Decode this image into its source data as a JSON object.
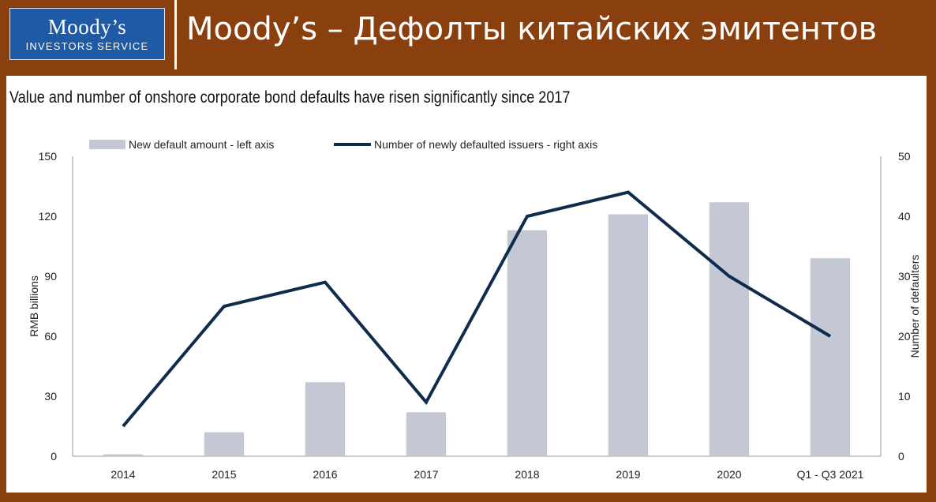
{
  "header": {
    "logo_name": "Moody’s",
    "logo_sub": "INVESTORS SERVICE",
    "title": "Moody’s – Дефолты китайских эмитентов"
  },
  "colors": {
    "background": "#8a3f0f",
    "logo_blue": "#1f5aa6",
    "bar": "#c3c8d4",
    "line": "#0f2c4d"
  },
  "chart_data": {
    "type": "bar",
    "title": "Value and number of onshore corporate bond defaults have risen significantly since 2017",
    "categories": [
      "2014",
      "2015",
      "2016",
      "2017",
      "2018",
      "2019",
      "2020",
      "Q1 - Q3 2021"
    ],
    "series": [
      {
        "name": "New default amount - left axis",
        "type": "bar",
        "axis": "left",
        "values": [
          1,
          12,
          37,
          22,
          113,
          121,
          127,
          99
        ]
      },
      {
        "name": "Number of newly defaulted issuers - right axis",
        "type": "line",
        "axis": "right",
        "values": [
          5,
          25,
          29,
          9,
          40,
          44,
          30,
          20
        ]
      }
    ],
    "ylabel": "RMB billions",
    "y2label": "Number of defaulters",
    "ylim": [
      0,
      150
    ],
    "y2lim": [
      0,
      50
    ],
    "yticks": [
      "0",
      "30",
      "60",
      "90",
      "120",
      "150"
    ],
    "y2ticks": [
      "0",
      "10",
      "20",
      "30",
      "40",
      "50"
    ],
    "grid": false,
    "legend": "top"
  }
}
